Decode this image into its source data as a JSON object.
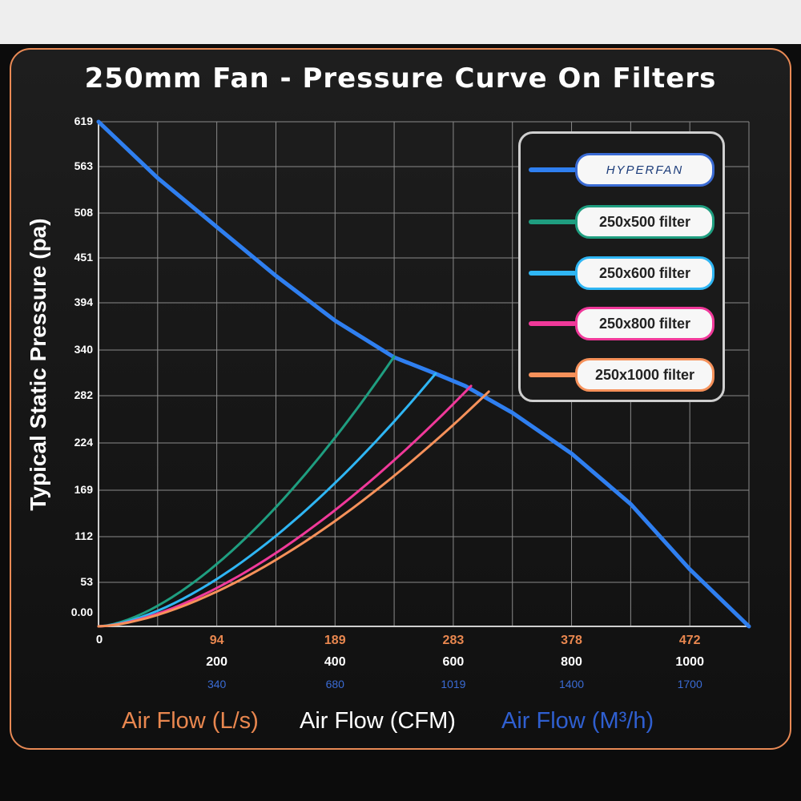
{
  "title": "250mm Fan - Pressure Curve On Filters",
  "chart_data": {
    "type": "line",
    "ylabel": "Typical Static Pressure  (pa)",
    "yticks": [
      "619",
      "563",
      "508",
      "451",
      "394",
      "340",
      "282",
      "224",
      "169",
      "112",
      "53",
      "0.00"
    ],
    "ylim": [
      0,
      619
    ],
    "xlim": [
      0,
      1100
    ],
    "x_unit": "CFM",
    "x_zero_label": "0",
    "xticks": [
      {
        "cfm": 200,
        "ls": "94",
        "cfm_label": "200",
        "m3h": "340"
      },
      {
        "cfm": 400,
        "ls": "189",
        "cfm_label": "400",
        "m3h": "680"
      },
      {
        "cfm": 600,
        "ls": "283",
        "cfm_label": "600",
        "m3h": "1019"
      },
      {
        "cfm": 800,
        "ls": "378",
        "cfm_label": "800",
        "m3h": "1400"
      },
      {
        "cfm": 1000,
        "ls": "472",
        "cfm_label": "1000",
        "m3h": "1700"
      }
    ],
    "xlabels": {
      "ls": "Air Flow (L/s)",
      "cfm": "Air Flow (CFM)",
      "m3h": "Air Flow (M³/h)"
    },
    "grid": true,
    "legend_position": "top-right",
    "series": [
      {
        "name": "HYPERFAN",
        "color": "#2f7ff0",
        "points": [
          [
            0,
            619
          ],
          [
            100,
            550
          ],
          [
            200,
            490
          ],
          [
            300,
            430
          ],
          [
            400,
            375
          ],
          [
            500,
            330
          ],
          [
            570,
            310
          ],
          [
            620,
            295
          ],
          [
            700,
            262
          ],
          [
            800,
            212
          ],
          [
            900,
            150
          ],
          [
            1000,
            70
          ],
          [
            1100,
            0
          ]
        ]
      },
      {
        "name": "250x500 filter",
        "color": "#1f9e80",
        "points": [
          [
            0,
            0
          ],
          [
            500,
            331
          ]
        ]
      },
      {
        "name": "250x600 filter",
        "color": "#2fb6f4",
        "points": [
          [
            0,
            0
          ],
          [
            570,
            310
          ]
        ]
      },
      {
        "name": "250x800 filter",
        "color": "#f0399a",
        "points": [
          [
            0,
            0
          ],
          [
            630,
            295
          ]
        ]
      },
      {
        "name": "250x1000 filter",
        "color": "#f6915a",
        "points": [
          [
            0,
            0
          ],
          [
            660,
            288
          ]
        ]
      }
    ]
  }
}
